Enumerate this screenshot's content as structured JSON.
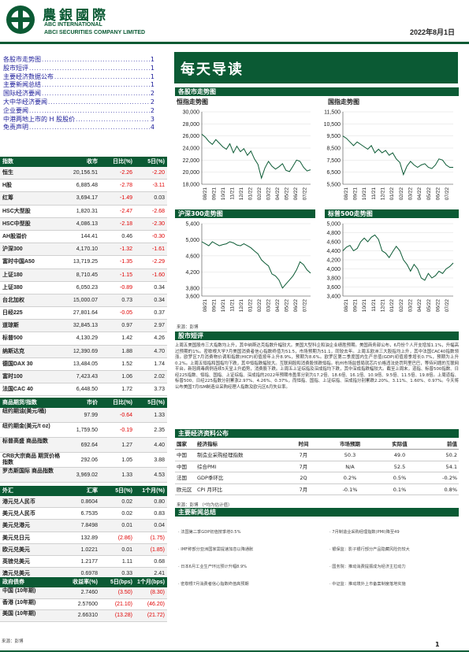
{
  "header": {
    "brand_cn": "農銀國際",
    "brand_en_1": "ABC INTERNATIONAL",
    "brand_en_2": "ABCI SECURITIES COMPANY LIMITED",
    "date": "2022年8月1日"
  },
  "toc": [
    {
      "label": "各股市走势图",
      "page": "1"
    },
    {
      "label": "股市短评",
      "page": "1"
    },
    {
      "label": "主要经济数据公布",
      "page": "1"
    },
    {
      "label": "主要新闻总结",
      "page": "1"
    },
    {
      "label": "国际经济要闻",
      "page": "2"
    },
    {
      "label": "大中华经济要闻",
      "page": "2"
    },
    {
      "label": "企业要闻",
      "page": "2"
    },
    {
      "label": "中港两地上市的 H 股股价",
      "page": "3"
    },
    {
      "label": "免责声明",
      "page": "4"
    }
  ],
  "banner": "每天导读",
  "index_table": {
    "headers": [
      "指数",
      "收市",
      "日比(%)",
      "5日(%)"
    ],
    "rows": [
      [
        "恒生",
        "20,156.51",
        "-2.26",
        "-2.20"
      ],
      [
        "H股",
        "6,885.48",
        "-2.78",
        "-3.11"
      ],
      [
        "红筹",
        "3,694.17",
        "-1.49",
        "0.03"
      ],
      [
        "HSC大型股",
        "1,820.31",
        "-2.47",
        "-2.68"
      ],
      [
        "HSC中型股",
        "4,086.13",
        "-2.18",
        "-2.30"
      ],
      [
        "AH股溢价",
        "144.41",
        "0.46",
        "-0.30"
      ],
      [
        "沪深300",
        "4,170.10",
        "-1.32",
        "-1.61"
      ],
      [
        "富时中国A50",
        "13,719.25",
        "-1.35",
        "-2.29"
      ],
      [
        "上证180",
        "8,710.45",
        "-1.15",
        "-1.60"
      ],
      [
        "上证380",
        "6,050.23",
        "-0.89",
        "0.34"
      ],
      [
        "台北加权",
        "15,000.07",
        "0.73",
        "0.34"
      ],
      [
        "日经225",
        "27,801.64",
        "-0.05",
        "0.37"
      ],
      [
        "道琼斯",
        "32,845.13",
        "0.97",
        "2.97"
      ],
      [
        "标普500",
        "4,130.29",
        "1.42",
        "4.26"
      ],
      [
        "纳斯达克",
        "12,390.69",
        "1.88",
        "4.70"
      ],
      [
        "德国DAX 30",
        "13,484.05",
        "1.52",
        "1.74"
      ],
      [
        "富时100",
        "7,423.43",
        "1.06",
        "2.02"
      ],
      [
        "法国CAC 40",
        "6,448.50",
        "1.72",
        "3.73"
      ]
    ]
  },
  "commodity_table": {
    "headers": [
      "商品期货/指数",
      "市价",
      "日比(%)",
      "5日(%)"
    ],
    "rows": [
      [
        "纽约期油(美元/桶)",
        "97.99",
        "-0.64",
        "1.33"
      ],
      [
        "纽约期金(美元/t oz)",
        "1,759.50",
        "-0.19",
        "2.35"
      ],
      [
        "标普高盛 商品指数",
        "692.64",
        "1.27",
        "4.40"
      ],
      [
        "CRB大宗商品 期货价格指数",
        "292.06",
        "1.05",
        "3.88"
      ],
      [
        "罗杰斯国际 商品指数",
        "3,969.02",
        "1.33",
        "4.53"
      ]
    ]
  },
  "fx_table": {
    "headers": [
      "外汇",
      "汇率",
      "5日(%)",
      "1个月(%)"
    ],
    "rows": [
      [
        "港元兑人民币",
        "0.8604",
        "0.02",
        "0.80"
      ],
      [
        "美元兑人民币",
        "6.7535",
        "0.02",
        "0.83"
      ],
      [
        "美元兑港元",
        "7.8498",
        "0.01",
        "0.04"
      ],
      [
        "美元兑日元",
        "132.89",
        "(2.86)",
        "(1.75)"
      ],
      [
        "欧元兑美元",
        "1.0221",
        "0.01",
        "(1.85)"
      ],
      [
        "英镑兑美元",
        "1.2177",
        "1.11",
        "0.68"
      ],
      [
        "澳元兑美元",
        "0.6978",
        "0.33",
        "2.41"
      ]
    ]
  },
  "bond_table": {
    "headers": [
      "政府债券",
      "收益率(%)",
      "5日(bps)",
      "1个月(bps)"
    ],
    "rows": [
      [
        "中国 (10年期)",
        "2.7460",
        "(3.50)",
        "(8.30)"
      ],
      [
        "香港 (10年期)",
        "2.57600",
        "(21.10)",
        "(46.20)"
      ],
      [
        "美国 (10年期)",
        "2.66310",
        "(13.28)",
        "(21.72)"
      ]
    ]
  },
  "bond_source": "来源：彭博",
  "charts_section": "各股市走势图",
  "chart_source": "来源：彭博",
  "chart_data": [
    {
      "type": "line",
      "title": "恒指走势图",
      "ylim": [
        18000,
        30000
      ],
      "yticks": [
        "30,000",
        "28,000",
        "26,000",
        "24,000",
        "22,000",
        "20,000",
        "18,000"
      ],
      "xticks": [
        "08/21",
        "09/21",
        "10/21",
        "11/21",
        "12/21",
        "01/22",
        "02/22",
        "03/22",
        "04/22",
        "05/22",
        "06/22",
        "07/22"
      ],
      "series": [
        {
          "values": [
            26300,
            25800,
            25100,
            24600,
            25400,
            24800,
            24200,
            23800,
            24700,
            23200,
            24300,
            23400,
            23900,
            22800,
            23500,
            22200,
            21300,
            19000,
            20700,
            21800,
            21000,
            20500,
            20900,
            21400,
            20300,
            20100,
            21000,
            22000,
            21800,
            20800,
            20200,
            20400
          ]
        }
      ]
    },
    {
      "type": "line",
      "title": "国指走势图",
      "ylim": [
        5500,
        11500
      ],
      "yticks": [
        "11,500",
        "10,500",
        "9,500",
        "8,500",
        "7,500",
        "6,500",
        "5,500"
      ],
      "xticks": [
        "08/21",
        "09/21",
        "10/21",
        "11/21",
        "12/21",
        "01/22",
        "02/22",
        "03/22",
        "04/22",
        "05/22",
        "06/22",
        "07/22"
      ],
      "series": [
        {
          "values": [
            9500,
            9300,
            9000,
            8700,
            9000,
            8800,
            8600,
            8400,
            8700,
            8100,
            8400,
            8100,
            8300,
            7900,
            8100,
            7600,
            7300,
            6300,
            7000,
            7400,
            7100,
            6900,
            7100,
            7200,
            6900,
            6800,
            7100,
            7600,
            7500,
            7100,
            6900,
            6900
          ]
        }
      ]
    },
    {
      "type": "line",
      "title": "沪深300走势图",
      "ylim": [
        3600,
        5400
      ],
      "yticks": [
        "5,400",
        "5,000",
        "4,600",
        "4,200",
        "3,800",
        "3,600"
      ],
      "xticks": [
        "08/21",
        "09/21",
        "10/21",
        "11/21",
        "12/21",
        "01/22",
        "02/22",
        "03/22",
        "04/22",
        "05/22",
        "06/22",
        "07/22"
      ],
      "series": [
        {
          "values": [
            4950,
            4900,
            4850,
            4950,
            4900,
            4850,
            4880,
            4900,
            4950,
            4920,
            4870,
            4850,
            4900,
            4850,
            4800,
            4720,
            4650,
            4500,
            4420,
            4350,
            4150,
            4100,
            4000,
            3800,
            3900,
            4000,
            4100,
            4250,
            4450,
            4380,
            4250,
            4170
          ]
        }
      ]
    },
    {
      "type": "line",
      "title": "标普500走势图",
      "ylim": [
        3400,
        5000
      ],
      "yticks": [
        "5,000",
        "4,800",
        "4,600",
        "4,400",
        "4,200",
        "4,000",
        "3,800",
        "3,600",
        "3,400"
      ],
      "xticks": [
        "08/21",
        "09/21",
        "10/21",
        "11/21",
        "12/21",
        "01/22",
        "02/22",
        "03/22",
        "04/22",
        "05/22",
        "06/22",
        "07/22"
      ],
      "series": [
        {
          "values": [
            4400,
            4480,
            4520,
            4400,
            4450,
            4600,
            4680,
            4600,
            4700,
            4750,
            4650,
            4400,
            4350,
            4250,
            4380,
            4500,
            4400,
            4200,
            4100,
            3950,
            4100,
            4000,
            3800,
            3750,
            3900,
            3800,
            3850,
            3950,
            3900,
            4000,
            4050,
            4130
          ]
        }
      ]
    }
  ],
  "commentary_section": "股市短评",
  "commentary": "上周五美国股市三大指数均上升，其中纳斯达克指数升幅较大。美国大型科企和油企业绩胜预期。美国商务部公布，6月份个人开支增加1.1%，升幅高过预期的1%。密歇根大学7月美国消费者信心指数终值为51.5，市场预期为51.1，同较去年。上周五欧洲三大股指均上升，其中法国CAC40指数领涨。欧罗区7月消费物价调和指数(HICP)初值按年上升8.9%，预期为8.6%。欧罗区第二季度国内生产总值(GDP)初值按季增长0.7%，预期为上升0.2%。上周五恒指和国指均下跌，其中恒指跌幅较大。互联网股和消费股领跌恒指。杭州市场监督局就芯片价格违法处罚阿里巴巴，等待问题的互联网平台。新冠病毒病例连续5天呈上升趋势，消费股下跌。上周五上证综指及深成指均下跌，其中深成指跌幅较大。截至上周末，道指、标普500指数、日经225指数、恒指、国指、上证综指、深成指的2022年预期市盈率分别为17.2倍、18.6倍、16.1倍、10.9倍、9.5倍、11.5倍、19.8倍。上周道指、标普500、日经225指数分别累涨2.97%、4.26%、0.37%，而恒指、国指、上证综指、深成指分别累跌2.20%、3.11%、1.60%、0.97%。今天将公布美国7月ISM制造业采购经理人指数及欧元区6月失业率。",
  "eco_section": "主要经济资料公布",
  "eco_table": {
    "headers": [
      "国家",
      "经济指标",
      "时间",
      "市场预期",
      "实际值",
      "前值"
    ],
    "rows": [
      [
        "中国",
        "制造业采购经理指数",
        "7月",
        "50.3",
        "49.0",
        "50.2"
      ],
      [
        "中国",
        "综合PMI",
        "7月",
        "N/A",
        "52.5",
        "54.1"
      ],
      [
        "法国",
        "GDP季环比",
        "2Q",
        "0.2%",
        "0.5%",
        "-0.2%"
      ],
      [
        "欧元区",
        "CPI 月环比",
        "7月",
        "-0.1%",
        "0.1%",
        "0.8%"
      ]
    ]
  },
  "eco_source": "来源：彭博 （*均为估计值）",
  "news_section": "主要新闻总结",
  "news": [
    "· 法国第二季GDP初值按季增0.5%",
    "· 7月制造业采购经理指数(PMI)降至49",
    "· IMF称部分亚洲国家需提速加息以降通胀",
    "· 银保监：影子银行部分产品隐藏风险仍较大",
    "· 日本6月工业生产环比预计升幅8.9%",
    "· 国务院：推动消费提振成为经济主拉动力",
    "· 密歇根7月消费者信心指数终值高预期",
    "· 中证监：推动境外上市备案制度落地实施"
  ],
  "page_number": "1",
  "colors": {
    "brand_green": "#0b5a34",
    "negative": "#e00000",
    "link": "#1a1a99"
  }
}
